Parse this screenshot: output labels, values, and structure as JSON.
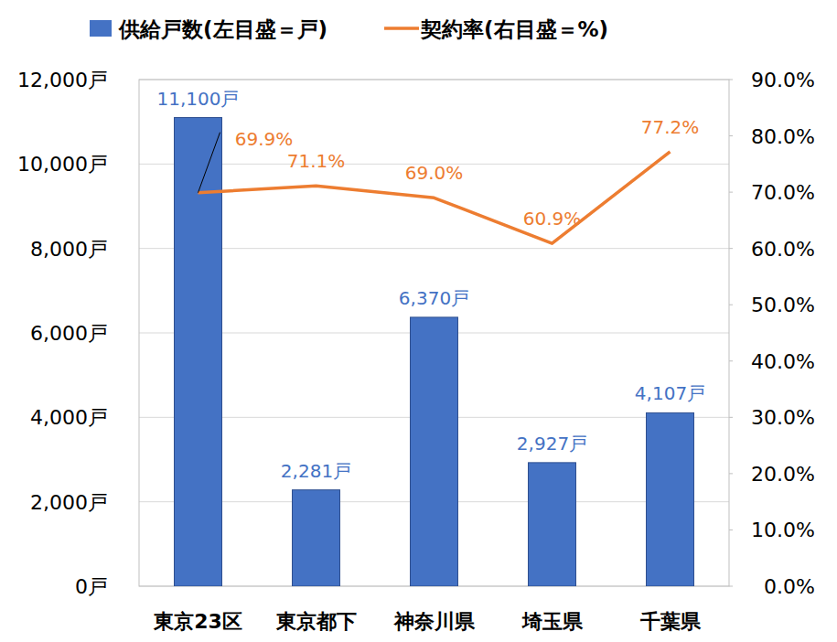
{
  "chart_data": {
    "type": "bar",
    "categories": [
      "東京23区",
      "東京都下",
      "神奈川県",
      "埼玉県",
      "千葉県"
    ],
    "series": [
      {
        "name": "供給戸数(左目盛＝戸)",
        "type": "bar",
        "color": "#4472c4",
        "values": [
          11100,
          2281,
          6370,
          2927,
          4107
        ],
        "value_labels": [
          "11,100戸",
          "2,281戸",
          "6,370戸",
          "2,927戸",
          "4,107戸"
        ]
      },
      {
        "name": "契約率(右目盛＝%)",
        "type": "line",
        "color": "#ed7d31",
        "axis": "y2",
        "values": [
          69.9,
          71.1,
          69.0,
          60.9,
          77.2
        ],
        "value_labels": [
          "69.9%",
          "71.1%",
          "69.0%",
          "60.9%",
          "77.2%"
        ]
      }
    ],
    "ylim": [
      0,
      12000
    ],
    "yticks": [
      {
        "value": 0,
        "label": "0戸"
      },
      {
        "value": 2000,
        "label": "2,000戸"
      },
      {
        "value": 4000,
        "label": "4,000戸"
      },
      {
        "value": 6000,
        "label": "6,000戸"
      },
      {
        "value": 8000,
        "label": "8,000戸"
      },
      {
        "value": 10000,
        "label": "10,000戸"
      },
      {
        "value": 12000,
        "label": "12,000戸"
      }
    ],
    "y2lim": [
      0,
      90
    ],
    "y2ticks": [
      {
        "value": 0,
        "label": "0.0%"
      },
      {
        "value": 10,
        "label": "10.0%"
      },
      {
        "value": 20,
        "label": "20.0%"
      },
      {
        "value": 30,
        "label": "30.0%"
      },
      {
        "value": 40,
        "label": "40.0%"
      },
      {
        "value": 50,
        "label": "50.0%"
      },
      {
        "value": 60,
        "label": "60.0%"
      },
      {
        "value": 70,
        "label": "70.0%"
      },
      {
        "value": 80,
        "label": "80.0%"
      },
      {
        "value": 90,
        "label": "90.0%"
      }
    ],
    "grid": true,
    "legend": "top",
    "data_labels": true
  }
}
